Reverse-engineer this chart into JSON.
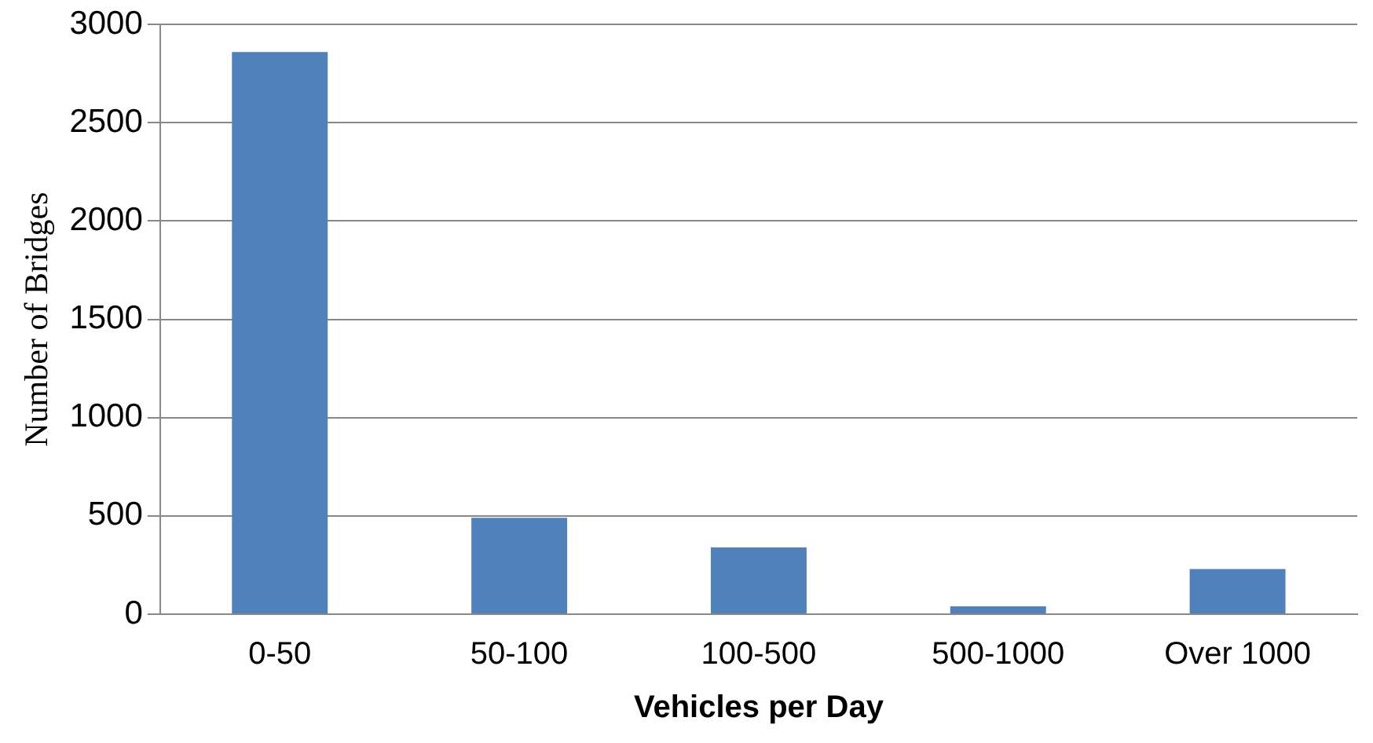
{
  "chart_data": {
    "type": "bar",
    "xlabel": "Vehicles per Day",
    "ylabel": "Number of Bridges",
    "categories": [
      "0-50",
      "50-100",
      "100-500",
      "500-1000",
      "Over 1000"
    ],
    "values": [
      2860,
      490,
      340,
      40,
      230
    ],
    "color": "#4f81bd",
    "ylim": [
      0,
      3000
    ],
    "yticks": [
      0,
      500,
      1000,
      1500,
      2000,
      2500,
      3000
    ],
    "grid": "y",
    "legend": false
  }
}
